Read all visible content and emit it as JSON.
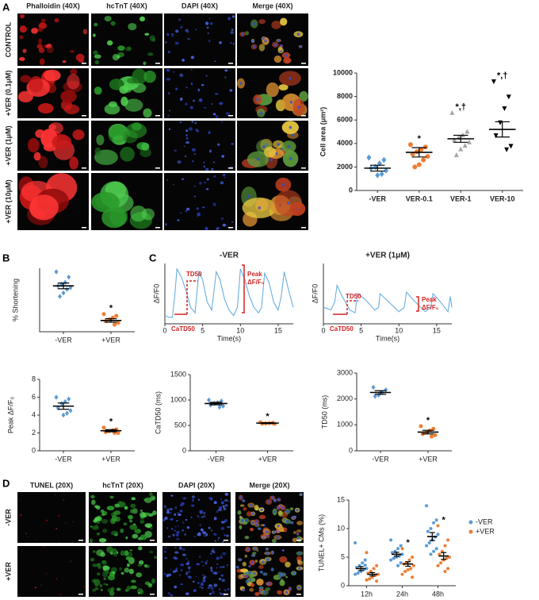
{
  "panel_labels": [
    "A",
    "B",
    "C",
    "D"
  ],
  "microscopy": [
    {
      "columns": [
        "Phalloidin (40X)",
        "hcTnT (40X)",
        "DAPI (40X)",
        "Merge (40X)"
      ],
      "column_colors": [
        "#e02020",
        "#2ca02c",
        "#3060c0",
        "#111111"
      ],
      "rows": [
        "CONTROL",
        "+VER (0.1μM)",
        "+VER (1μM)",
        "+VER (10μM)"
      ]
    },
    {
      "columns": [
        "TUNEL (20X)",
        "hcTnT (20X)",
        "DAPI (20X)",
        "Merge (20X)"
      ],
      "column_colors": [
        "#e02020",
        "#2ca02c",
        "#3060c0",
        "#111111"
      ],
      "rows": [
        "-VER",
        "+VER"
      ]
    }
  ],
  "chart_data": [
    {
      "type": "dot",
      "ylabel": "Cell area (μm²)",
      "categories": [
        "-VER",
        "VER-0.1",
        "VER-1",
        "VER-10"
      ],
      "ylim": [
        0,
        10000
      ],
      "yticks": [
        0,
        2000,
        4000,
        6000,
        8000,
        10000
      ],
      "series": [
        {
          "colors": [
            "#5b9bd5",
            "#ed7d31",
            "#a5a5a5",
            "#000000"
          ],
          "markers": [
            "diamond",
            "circle",
            "triangle",
            "triangle-down"
          ],
          "points": [
            [
              2800,
              2600,
              2300,
              2000,
              1900,
              1700,
              1400,
              1300
            ],
            [
              3900,
              3700,
              3500,
              3300,
              3100,
              2900,
              2600,
              2200,
              2000
            ],
            [
              6600,
              5000,
              4700,
              4500,
              4300,
              4100,
              3800,
              3500,
              3000
            ],
            [
              9300,
              8000,
              7000,
              5800,
              4700,
              3800,
              3500
            ]
          ],
          "means": [
            1900,
            3250,
            4400,
            5200
          ],
          "sems": [
            250,
            400,
            300,
            650
          ],
          "annotations": [
            null,
            "*",
            "*,†",
            "*,†"
          ]
        }
      ]
    },
    {
      "type": "dot",
      "ylabel": "% Shortening",
      "categories": [
        "-VER",
        "+VER"
      ],
      "ylim": [
        0,
        18
      ],
      "series": [
        {
          "colors": [
            "#5b9bd5",
            "#ed7d31"
          ],
          "markers": [
            "diamond",
            "circle"
          ],
          "points": [
            [
              17,
              15.5,
              14,
              13.5,
              13,
              12.5,
              12,
              11,
              10
            ],
            [
              5,
              4.5,
              4,
              3.5,
              3,
              2.5,
              2
            ]
          ],
          "means": [
            13,
            3.2
          ],
          "sems": [
            0.8,
            0.5
          ],
          "annotations": [
            null,
            "*"
          ]
        }
      ]
    },
    {
      "type": "line",
      "title": "-VER",
      "xlabel": "Time(s)",
      "ylabel": "ΔF/F0",
      "color": "#6aaee0",
      "x": [
        0,
        0.5,
        1,
        1.3,
        1.6,
        2.2,
        2.8,
        3.4,
        4.0,
        4.5,
        5.0,
        5.6,
        6.2,
        6.8,
        7.3,
        7.9,
        8.5,
        9.1,
        9.6,
        10.0,
        10.6,
        11.2,
        11.8,
        12.4,
        12.8,
        13.2,
        13.8,
        14.4,
        15.0,
        15.4,
        15.8,
        16.4,
        17
      ],
      "values": [
        0.15,
        0.12,
        0.12,
        0.5,
        1.0,
        0.85,
        0.6,
        0.3,
        0.2,
        0.95,
        0.8,
        0.4,
        0.25,
        0.95,
        0.8,
        0.45,
        0.25,
        0.15,
        0.3,
        1.0,
        0.8,
        0.5,
        0.3,
        0.2,
        0.3,
        0.92,
        0.75,
        0.4,
        0.25,
        0.5,
        0.95,
        0.6,
        0.3
      ],
      "xlim": [
        0,
        17
      ],
      "xticks": [
        0,
        5,
        10,
        15
      ],
      "ylim": [
        0,
        1.1
      ],
      "annotations": {
        "td50": "TD50",
        "catd50": "CaTD50",
        "peak": [
          "Peak",
          "ΔF/F₀"
        ]
      }
    },
    {
      "type": "line",
      "title": "+VER (1μM)",
      "xlabel": "Time(s)",
      "ylabel": "ΔF/F0",
      "color": "#6aaee0",
      "x": [
        0,
        0.5,
        1,
        1.5,
        1.8,
        2.5,
        3.5,
        4.2,
        4.5,
        5.5,
        6.8,
        7.3,
        7.5,
        8.5,
        10,
        10.7,
        11,
        12,
        13.5,
        14.2,
        14.5,
        15.5,
        16.5,
        16.8,
        17
      ],
      "values": [
        0.3,
        0.28,
        0.25,
        0.4,
        0.7,
        0.5,
        0.25,
        0.2,
        0.55,
        0.45,
        0.25,
        0.3,
        0.55,
        0.42,
        0.22,
        0.3,
        0.58,
        0.42,
        0.22,
        0.3,
        0.55,
        0.4,
        0.22,
        0.5,
        0.3
      ],
      "xlim": [
        0,
        17
      ],
      "xticks": [
        0,
        5,
        10,
        15
      ],
      "ylim": [
        0,
        1.1
      ],
      "annotations": {
        "td50": "TD50",
        "catd50": "CaTD50",
        "peak": [
          "Peak",
          "ΔF/F₀"
        ]
      }
    },
    {
      "type": "dot",
      "ylabel": "Peak ΔF/F₀",
      "categories": [
        "-VER",
        "+VER"
      ],
      "ylim": [
        0,
        8
      ],
      "yticks": [
        0,
        2,
        4,
        6,
        8
      ],
      "series": [
        {
          "colors": [
            "#5b9bd5",
            "#ed7d31"
          ],
          "markers": [
            "diamond",
            "circle"
          ],
          "points": [
            [
              6,
              5.8,
              5.5,
              5.3,
              4.8,
              4.5,
              4.2,
              4.0
            ],
            [
              2.6,
              2.4,
              2.3,
              2.2,
              2.1,
              2.0,
              2.0
            ]
          ],
          "means": [
            5,
            2.25
          ],
          "sems": [
            0.35,
            0.12
          ],
          "annotations": [
            null,
            "*"
          ]
        }
      ]
    },
    {
      "type": "dot",
      "ylabel": "CaTD50 (ms)",
      "categories": [
        "-VER",
        "+VER"
      ],
      "ylim": [
        0,
        1500
      ],
      "yticks": [
        0,
        500,
        1000,
        1500
      ],
      "series": [
        {
          "colors": [
            "#5b9bd5",
            "#ed7d31"
          ],
          "markers": [
            "diamond",
            "circle"
          ],
          "points": [
            [
              1000,
              980,
              950,
              930,
              900,
              880,
              860
            ],
            [
              560,
              550,
              545,
              540,
              535,
              530
            ]
          ],
          "means": [
            930,
            545
          ],
          "sems": [
            25,
            8
          ],
          "annotations": [
            null,
            "*"
          ]
        }
      ]
    },
    {
      "type": "dot",
      "ylabel": "TD50 (ms)",
      "categories": [
        "-VER",
        "+VER"
      ],
      "ylim": [
        0,
        3000
      ],
      "yticks": [
        0,
        1000,
        2000,
        3000
      ],
      "series": [
        {
          "colors": [
            "#5b9bd5",
            "#ed7d31"
          ],
          "markers": [
            "diamond",
            "circle"
          ],
          "points": [
            [
              2450,
              2350,
              2250,
              2150,
              2100
            ],
            [
              950,
              850,
              780,
              700,
              650,
              600,
              550
            ]
          ],
          "means": [
            2250,
            720
          ],
          "sems": [
            70,
            70
          ],
          "annotations": [
            null,
            "*"
          ]
        }
      ]
    },
    {
      "type": "dot",
      "ylabel": "TUNEL+ CMs (%)",
      "categories": [
        "12h",
        "24h",
        "48h"
      ],
      "ylim": [
        0,
        15
      ],
      "yticks": [
        0,
        5,
        10,
        15
      ],
      "legend": "right",
      "series": [
        {
          "name": "-VER",
          "color": "#5b9bd5",
          "marker": "circle",
          "points": [
            [
              7.5,
              4.5,
              4,
              3.5,
              3.2,
              3,
              2.8,
              2.5,
              2.2,
              2,
              3.6
            ],
            [
              8,
              7,
              6.5,
              6,
              5.8,
              5.5,
              5.2,
              5,
              4.8,
              4.5,
              4,
              3.5
            ],
            [
              14,
              11.5,
              11,
              10,
              9.5,
              9,
              8.5,
              8,
              7.5,
              7,
              6.5,
              6,
              5.5
            ]
          ],
          "means": [
            3.0,
            5.5,
            8.6
          ],
          "sems": [
            0.35,
            0.35,
            0.7
          ]
        },
        {
          "name": "+VER",
          "color": "#ed7d31",
          "marker": "circle",
          "points": [
            [
              5.8,
              3.5,
              3,
              2.5,
              2.2,
              2,
              1.8,
              1.5,
              1.2,
              1,
              0.8
            ],
            [
              6.5,
              5,
              4.5,
              4,
              3.8,
              3.5,
              3,
              2.8,
              2.5,
              2,
              1.5
            ],
            [
              10.5,
              8,
              7,
              6,
              5.5,
              5,
              4.8,
              4.5,
              4,
              3.5,
              3,
              2.5
            ]
          ],
          "means": [
            2.0,
            3.8,
            5.2
          ],
          "sems": [
            0.3,
            0.4,
            0.6
          ],
          "annotations": [
            null,
            "*",
            "*"
          ]
        }
      ]
    }
  ]
}
